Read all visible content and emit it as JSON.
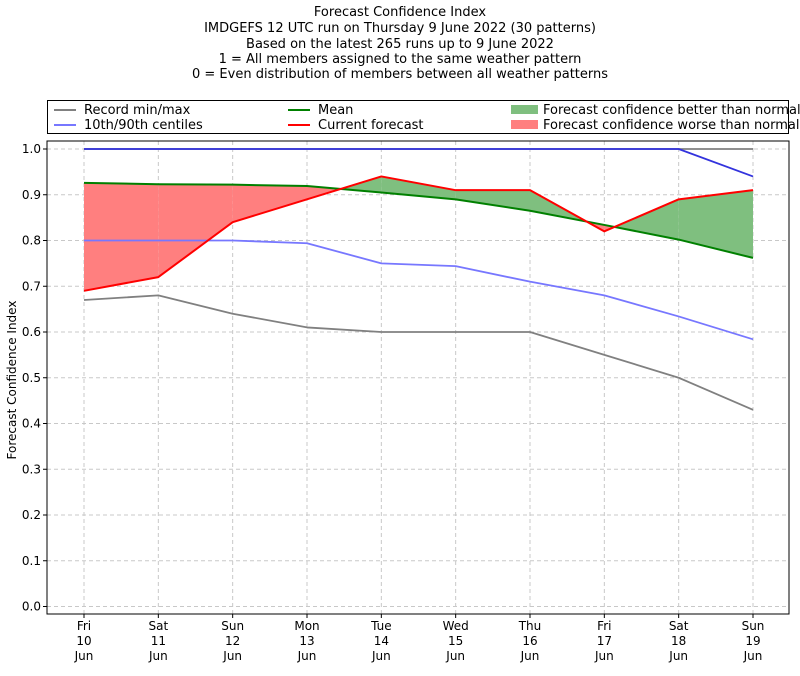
{
  "titles": [
    "Forecast Confidence Index",
    "IMDGEFS 12 UTC run on Thursday 9 June 2022 (30 patterns)",
    "Based on the latest 265 runs up to 9 June 2022",
    "1 = All members assigned to the same weather pattern",
    "0 = Even distribution of members between all weather patterns"
  ],
  "legend": {
    "record": "Record min/max",
    "centiles": "10th/90th centiles",
    "mean": "Mean",
    "current": "Current forecast",
    "better": "Forecast confidence better than normal",
    "worse": "Forecast confidence worse than normal"
  },
  "colors": {
    "record": "#808080",
    "centiles": "#7777ff",
    "max_line": "#3333dd",
    "mean": "#008000",
    "current": "#ff0000",
    "better": "#7fbf7f",
    "worse": "#ff7f7f"
  },
  "chart_data": {
    "type": "line",
    "ylabel": "Forecast Confidence Index",
    "xlabel": "",
    "ylim": [
      0.0,
      1.0
    ],
    "yticks": [
      "0.0",
      "0.1",
      "0.2",
      "0.3",
      "0.4",
      "0.5",
      "0.6",
      "0.7",
      "0.8",
      "0.9",
      "1.0"
    ],
    "grid": true,
    "categories": [
      [
        "Fri",
        "10",
        "Jun"
      ],
      [
        "Sat",
        "11",
        "Jun"
      ],
      [
        "Sun",
        "12",
        "Jun"
      ],
      [
        "Mon",
        "13",
        "Jun"
      ],
      [
        "Tue",
        "14",
        "Jun"
      ],
      [
        "Wed",
        "15",
        "Jun"
      ],
      [
        "Thu",
        "16",
        "Jun"
      ],
      [
        "Fri",
        "17",
        "Jun"
      ],
      [
        "Sat",
        "18",
        "Jun"
      ],
      [
        "Sun",
        "19",
        "Jun"
      ]
    ],
    "series": [
      {
        "name": "Record min",
        "key": "record",
        "values": [
          0.67,
          0.68,
          0.64,
          0.61,
          0.6,
          0.6,
          0.6,
          0.55,
          0.5,
          0.43
        ]
      },
      {
        "name": "Record max",
        "key": "record",
        "values": [
          1.0,
          1.0,
          1.0,
          1.0,
          1.0,
          1.0,
          1.0,
          1.0,
          1.0,
          1.0
        ]
      },
      {
        "name": "10th centile",
        "key": "centiles",
        "values": [
          0.8,
          0.8,
          0.8,
          0.794,
          0.75,
          0.744,
          0.71,
          0.68,
          0.634,
          0.584
        ]
      },
      {
        "name": "90th centile",
        "key": "max_line",
        "values": [
          1.0,
          1.0,
          1.0,
          1.0,
          1.0,
          1.0,
          1.0,
          1.0,
          1.0,
          0.94
        ]
      },
      {
        "name": "Mean",
        "key": "mean",
        "values": [
          0.926,
          0.923,
          0.922,
          0.919,
          0.905,
          0.89,
          0.865,
          0.834,
          0.802,
          0.762
        ]
      },
      {
        "name": "Current forecast",
        "key": "current",
        "values": [
          0.69,
          0.72,
          0.84,
          0.89,
          0.94,
          0.91,
          0.91,
          0.82,
          0.89,
          0.91
        ]
      }
    ]
  }
}
